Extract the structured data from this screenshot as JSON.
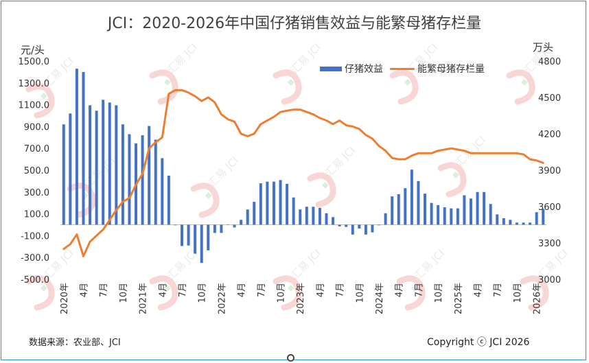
{
  "title": "JCI：2020-2026年中国仔猪销售效益与能繁母猪存栏量",
  "source": "数据来源：农业部、JCI",
  "copyright": "Copyright ⓒ JCI 2026",
  "watermark": "汇易 JCI",
  "colors": {
    "bar": "#4472c4",
    "line": "#ed7d31",
    "frame": "#2e8fc7",
    "watermark_red": "#f3b5b5",
    "watermark_green": "#bfe3bf"
  },
  "chart_data": {
    "type": "bar+line",
    "ylabel_left": "元/头",
    "ylabel_right": "万头",
    "ylim_left": [
      -500,
      1500
    ],
    "yticks_left": [
      -500,
      -300,
      -100,
      100,
      300,
      500,
      700,
      900,
      1100,
      1300,
      1500
    ],
    "ytick_labels_left": [
      "-500.0",
      "-300.0",
      "-100.0",
      "100.0",
      "300.0",
      "500.0",
      "700.0",
      "900.0",
      "1100.0",
      "1300.0",
      "1500.0"
    ],
    "ylim_right": [
      3000,
      4800
    ],
    "yticks_right": [
      3000,
      3300,
      3600,
      3900,
      4200,
      4500,
      4800
    ],
    "x_tick_labels": [
      "2020年",
      "4月",
      "7月",
      "10月",
      "2021年",
      "4月",
      "7月",
      "10月",
      "2022年",
      "4月",
      "7月",
      "10月",
      "2023年",
      "4月",
      "7月",
      "10月",
      "2024年",
      "4月",
      "7月",
      "10月",
      "2025年",
      "4月",
      "7月",
      "10月",
      "2026年"
    ],
    "months": [
      "2020-01",
      "2020-02",
      "2020-03",
      "2020-04",
      "2020-05",
      "2020-06",
      "2020-07",
      "2020-08",
      "2020-09",
      "2020-10",
      "2020-11",
      "2020-12",
      "2021-01",
      "2021-02",
      "2021-03",
      "2021-04",
      "2021-05",
      "2021-06",
      "2021-07",
      "2021-08",
      "2021-09",
      "2021-10",
      "2021-11",
      "2021-12",
      "2022-01",
      "2022-02",
      "2022-03",
      "2022-04",
      "2022-05",
      "2022-06",
      "2022-07",
      "2022-08",
      "2022-09",
      "2022-10",
      "2022-11",
      "2022-12",
      "2023-01",
      "2023-02",
      "2023-03",
      "2023-04",
      "2023-05",
      "2023-06",
      "2023-07",
      "2023-08",
      "2023-09",
      "2023-10",
      "2023-11",
      "2023-12",
      "2024-01",
      "2024-02",
      "2024-03",
      "2024-04",
      "2024-05",
      "2024-06",
      "2024-07",
      "2024-08",
      "2024-09",
      "2024-10",
      "2024-11",
      "2024-12",
      "2025-01",
      "2025-02",
      "2025-03",
      "2025-04",
      "2025-05",
      "2025-06",
      "2025-07",
      "2025-08",
      "2025-09",
      "2025-10",
      "2025-11",
      "2025-12",
      "2026-01",
      "2026-02"
    ],
    "series": [
      {
        "name": "仔猪效益",
        "type": "bar",
        "axis": "left",
        "values": [
          920,
          1020,
          1430,
          1400,
          1095,
          1045,
          1145,
          1120,
          1095,
          920,
          830,
          745,
          820,
          905,
          780,
          610,
          450,
          -5,
          -195,
          -190,
          -265,
          -350,
          -235,
          -75,
          -75,
          0,
          -25,
          45,
          140,
          210,
          380,
          395,
          395,
          410,
          375,
          250,
          140,
          165,
          165,
          155,
          105,
          70,
          -15,
          -20,
          -90,
          -35,
          -90,
          -70,
          -5,
          105,
          260,
          280,
          335,
          505,
          400,
          285,
          200,
          180,
          160,
          150,
          150,
          270,
          240,
          300,
          300,
          190,
          95,
          60,
          45,
          20,
          20,
          20,
          115,
          145
        ]
      },
      {
        "name": "能繁母猪存栏量",
        "type": "line",
        "axis": "right",
        "values": [
          3250,
          3290,
          3370,
          3190,
          3310,
          3360,
          3410,
          3490,
          3570,
          3640,
          3670,
          3780,
          3870,
          4080,
          4130,
          4170,
          4530,
          4560,
          4560,
          4540,
          4510,
          4470,
          4500,
          4460,
          4360,
          4320,
          4300,
          4200,
          4180,
          4200,
          4280,
          4310,
          4340,
          4380,
          4390,
          4400,
          4400,
          4380,
          4360,
          4330,
          4310,
          4280,
          4310,
          4270,
          4260,
          4240,
          4190,
          4160,
          4100,
          4060,
          4000,
          3990,
          3990,
          4020,
          4040,
          4040,
          4040,
          4060,
          4070,
          4080,
          4070,
          4060,
          4040,
          4040,
          4040,
          4040,
          4040,
          4040,
          4040,
          4040,
          4030,
          3990,
          3980,
          3960
        ]
      }
    ],
    "legend_position": "top-right",
    "grid": false
  }
}
